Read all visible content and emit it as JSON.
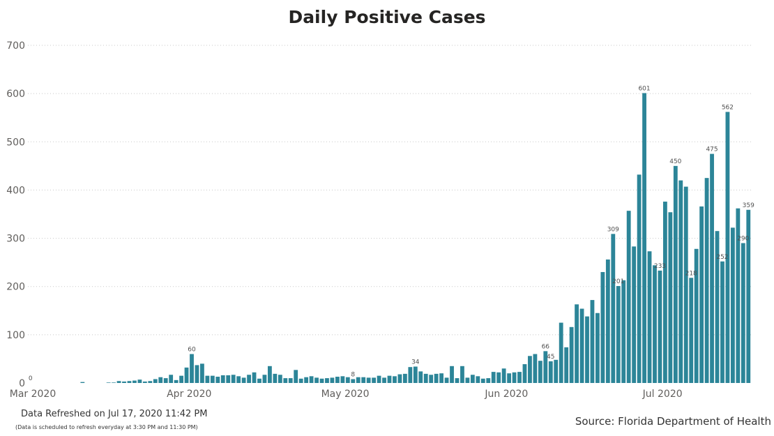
{
  "chart_data": {
    "type": "bar",
    "title": "Daily Positive Cases",
    "xlabel": "",
    "ylabel": "",
    "ylim": [
      0,
      700
    ],
    "y_ticks": [
      0,
      100,
      200,
      300,
      400,
      500,
      600,
      700
    ],
    "grid": true,
    "bar_color": "#2c8598",
    "x_tick_labels": [
      {
        "label": "Mar 2020",
        "index": 0
      },
      {
        "label": "Apr 2020",
        "index": 31
      },
      {
        "label": "May 2020",
        "index": 61
      },
      {
        "label": "Jun 2020",
        "index": 92
      },
      {
        "label": "Jul 2020",
        "index": 122
      }
    ],
    "values": [
      0,
      0,
      0,
      0,
      0,
      0,
      0,
      0,
      0,
      0,
      2,
      0,
      0,
      0,
      0,
      1,
      1,
      4,
      3,
      4,
      5,
      7,
      3,
      4,
      8,
      12,
      10,
      17,
      6,
      15,
      32,
      60,
      37,
      40,
      15,
      15,
      13,
      16,
      16,
      17,
      14,
      11,
      17,
      22,
      9,
      17,
      35,
      19,
      17,
      10,
      10,
      27,
      9,
      12,
      14,
      11,
      9,
      10,
      11,
      13,
      14,
      12,
      8,
      12,
      12,
      11,
      11,
      15,
      11,
      15,
      14,
      18,
      19,
      33,
      34,
      24,
      19,
      17,
      19,
      20,
      11,
      35,
      10,
      35,
      11,
      17,
      14,
      9,
      10,
      23,
      22,
      30,
      20,
      22,
      23,
      39,
      56,
      60,
      46,
      66,
      45,
      48,
      125,
      74,
      116,
      163,
      154,
      138,
      172,
      145,
      230,
      256,
      309,
      201,
      213,
      357,
      283,
      432,
      601,
      273,
      244,
      233,
      376,
      354,
      450,
      420,
      407,
      218,
      278,
      366,
      425,
      475,
      315,
      252,
      562,
      322,
      362,
      290,
      359
    ],
    "data_labels": [
      {
        "index": 0,
        "text": "0"
      },
      {
        "index": 31,
        "text": "60"
      },
      {
        "index": 62,
        "text": "8"
      },
      {
        "index": 74,
        "text": "34"
      },
      {
        "index": 99,
        "text": "66"
      },
      {
        "index": 100,
        "text": "45"
      },
      {
        "index": 112,
        "text": "309"
      },
      {
        "index": 113,
        "text": "201"
      },
      {
        "index": 118,
        "text": "601"
      },
      {
        "index": 121,
        "text": "233"
      },
      {
        "index": 124,
        "text": "450"
      },
      {
        "index": 127,
        "text": "218"
      },
      {
        "index": 131,
        "text": "475"
      },
      {
        "index": 133,
        "text": "252"
      },
      {
        "index": 134,
        "text": "562"
      },
      {
        "index": 137,
        "text": "290"
      },
      {
        "index": 138,
        "text": "359"
      }
    ]
  },
  "footer": {
    "refresh": "Data Refreshed on Jul 17, 2020 11:42 PM",
    "schedule": "(Data is scheduled to refresh everyday at 3:30 PM and 11:30 PM)",
    "source": "Source: Florida Department of Health"
  }
}
